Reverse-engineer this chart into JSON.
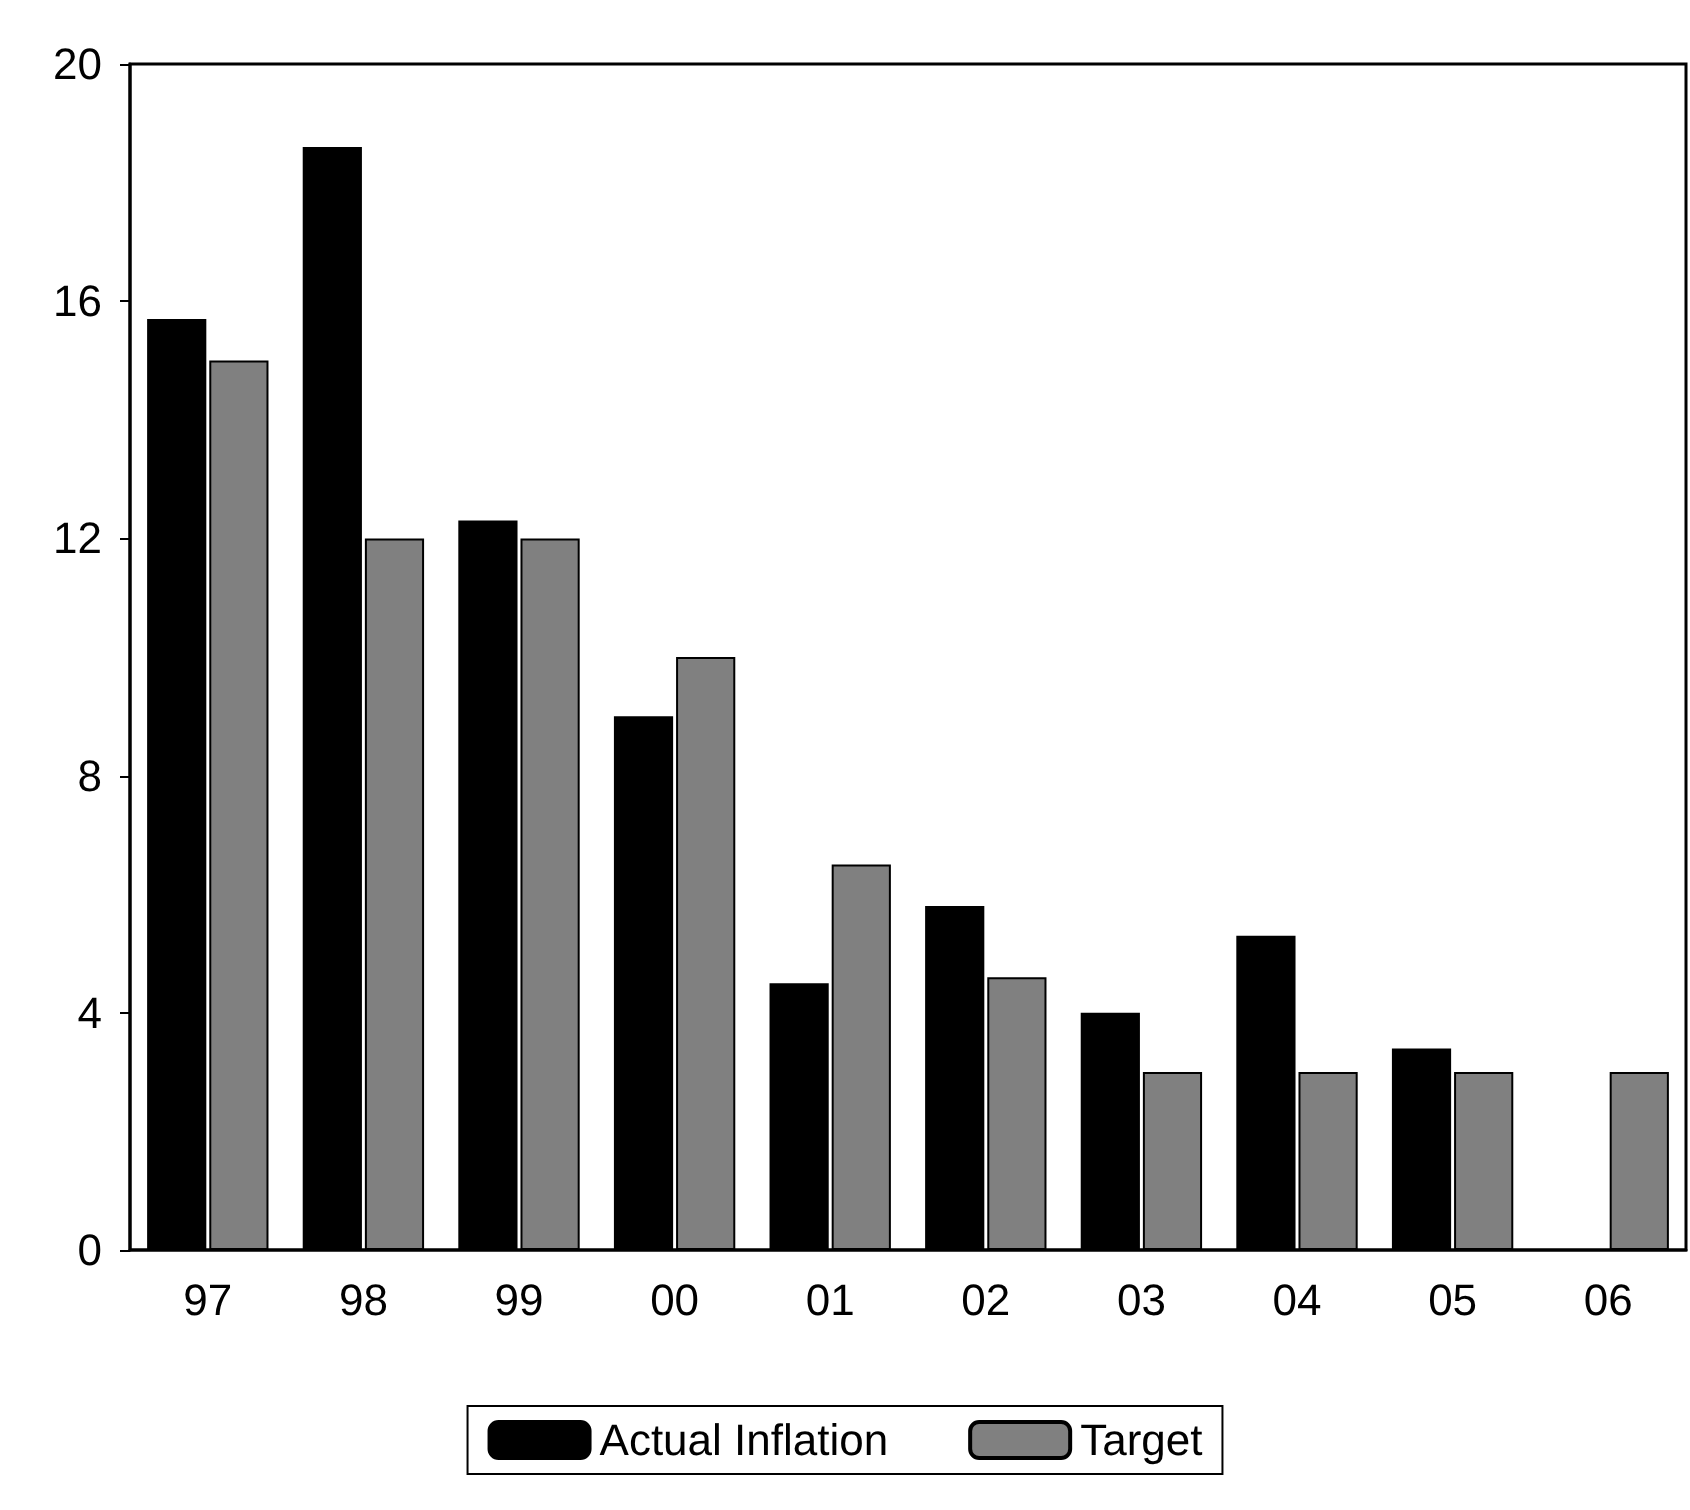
{
  "chart_data": {
    "type": "bar",
    "categories": [
      "97",
      "98",
      "99",
      "00",
      "01",
      "02",
      "03",
      "04",
      "05",
      "06"
    ],
    "series": [
      {
        "name": "Actual Inflation",
        "color": "#000000",
        "values": [
          15.7,
          18.6,
          12.3,
          9.0,
          4.5,
          5.8,
          4.0,
          5.3,
          3.4,
          null
        ]
      },
      {
        "name": "Target",
        "color": "#808080",
        "values": [
          15.0,
          12.0,
          12.0,
          10.0,
          6.5,
          4.6,
          3.0,
          3.0,
          3.0,
          3.0
        ]
      }
    ],
    "ylim": [
      0,
      20
    ],
    "yticks": [
      0,
      4,
      8,
      12,
      16,
      20
    ],
    "grid": false,
    "legend": "bottom"
  }
}
